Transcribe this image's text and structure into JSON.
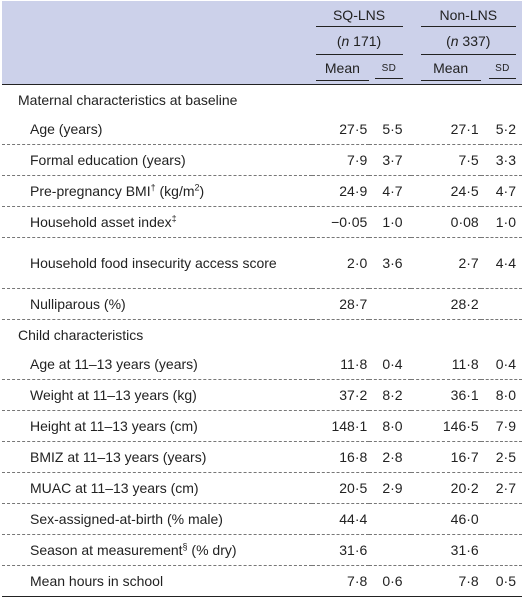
{
  "header": {
    "group1": "SQ-LNS",
    "group2": "Non-LNS",
    "n1_prefix": "n",
    "n1_value": " 171)",
    "n2_prefix": "n",
    "n2_value": " 337)",
    "open_paren": "(",
    "mean_label": "Mean",
    "sd_label": "SD"
  },
  "sections": {
    "maternal": "Maternal characteristics at baseline",
    "child": "Child characteristics"
  },
  "rows": [
    {
      "label": "Age (years)",
      "sup": "",
      "suffix": "",
      "m1": "27·5",
      "s1": "5·5",
      "m2": "27·1",
      "s2": "5·2"
    },
    {
      "label": "Formal education (years)",
      "sup": "",
      "suffix": "",
      "m1": "7·9",
      "s1": "3·7",
      "m2": "7·5",
      "s2": "3·3"
    },
    {
      "label": "Pre-pregnancy BMI",
      "sup": "†",
      "suffix": " (kg/m",
      "sup2": "2",
      "suffix2": ")",
      "m1": "24·9",
      "s1": "4·7",
      "m2": "24·5",
      "s2": "4·7"
    },
    {
      "label": "Household asset index",
      "sup": "‡",
      "suffix": "",
      "m1": "−0·05",
      "s1": "1·0",
      "m2": "0·08",
      "s2": "1·0"
    },
    {
      "label": "Household food insecurity access score",
      "sup": "",
      "suffix": "",
      "m1": "2·0",
      "s1": "3·6",
      "m2": "2·7",
      "s2": "4·4"
    },
    {
      "label": "Nulliparous (%)",
      "sup": "",
      "suffix": "",
      "m1": "28·7",
      "s1": "",
      "m2": "28·2",
      "s2": ""
    },
    {
      "label": "Age at 11–13 years (years)",
      "sup": "",
      "suffix": "",
      "m1": "11·8",
      "s1": "0·4",
      "m2": "11·8",
      "s2": "0·4"
    },
    {
      "label": "Weight at 11–13 years (kg)",
      "sup": "",
      "suffix": "",
      "m1": "37·2",
      "s1": "8·2",
      "m2": "36·1",
      "s2": "8·0"
    },
    {
      "label": "Height at 11–13 years (cm)",
      "sup": "",
      "suffix": "",
      "m1": "148·1",
      "s1": "8·0",
      "m2": "146·5",
      "s2": "7·9"
    },
    {
      "label": "BMIZ at 11–13 years (years)",
      "sup": "",
      "suffix": "",
      "m1": "16·8",
      "s1": "2·8",
      "m2": "16·7",
      "s2": "2·5"
    },
    {
      "label": "MUAC at 11–13 years (cm)",
      "sup": "",
      "suffix": "",
      "m1": "20·5",
      "s1": "2·9",
      "m2": "20·2",
      "s2": "2·7"
    },
    {
      "label": "Sex-assigned-at-birth (% male)",
      "sup": "",
      "suffix": "",
      "m1": "44·4",
      "s1": "",
      "m2": "46·0",
      "s2": ""
    },
    {
      "label": "Season at measurement",
      "sup": "§",
      "suffix": " (% dry)",
      "m1": "31·6",
      "s1": "",
      "m2": "31·6",
      "s2": ""
    },
    {
      "label": "Mean hours in school",
      "sup": "",
      "suffix": "",
      "m1": "7·8",
      "s1": "0·6",
      "m2": "7·8",
      "s2": "0·5"
    }
  ]
}
